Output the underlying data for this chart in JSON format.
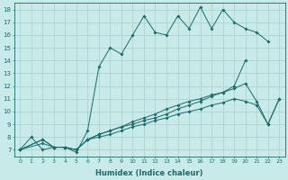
{
  "xlabel": "Humidex (Indice chaleur)",
  "bg_color": "#c8eae8",
  "grid_color": "#a8d0cc",
  "line_color": "#1a6b6b",
  "xlim": [
    -0.5,
    23.5
  ],
  "ylim": [
    6.5,
    18.5
  ],
  "xticks": [
    0,
    1,
    2,
    3,
    4,
    5,
    6,
    7,
    8,
    9,
    10,
    11,
    12,
    13,
    14,
    15,
    16,
    17,
    18,
    19,
    20,
    21,
    22,
    23
  ],
  "yticks": [
    7,
    8,
    9,
    10,
    11,
    12,
    13,
    14,
    15,
    16,
    17,
    18
  ],
  "series": [
    {
      "x": [
        0,
        1,
        2,
        3,
        4,
        5,
        6,
        7,
        8,
        9,
        10,
        11,
        12,
        13,
        14,
        15,
        16,
        17,
        18,
        19,
        20,
        21,
        22
      ],
      "y": [
        7,
        8,
        7,
        7.2,
        7.2,
        6.8,
        8.5,
        13.5,
        15.0,
        14.5,
        16.0,
        17.5,
        16.2,
        16.0,
        17.5,
        16.5,
        18.2,
        16.5,
        18.0,
        17.0,
        16.5,
        16.2,
        15.5
      ]
    },
    {
      "x": [
        0,
        2,
        3,
        4,
        5,
        6,
        7,
        8,
        9,
        10,
        11,
        12,
        13,
        14,
        15,
        16,
        17,
        18,
        19,
        20
      ],
      "y": [
        7,
        7.8,
        7.2,
        7.2,
        7.0,
        7.8,
        8.2,
        8.5,
        8.8,
        9.0,
        9.3,
        9.5,
        9.8,
        10.2,
        10.5,
        10.8,
        11.2,
        11.5,
        12.0,
        14.0
      ]
    },
    {
      "x": [
        0,
        2,
        3,
        4,
        5,
        6,
        7,
        8,
        9,
        10,
        11,
        12,
        13,
        14,
        15,
        16,
        17,
        18,
        19,
        20,
        21,
        22,
        23
      ],
      "y": [
        7,
        7.8,
        7.2,
        7.2,
        7.0,
        7.8,
        8.2,
        8.5,
        8.8,
        9.2,
        9.5,
        9.8,
        10.2,
        10.5,
        10.8,
        11.0,
        11.3,
        11.5,
        11.8,
        12.2,
        10.8,
        9.0,
        11.0
      ]
    },
    {
      "x": [
        0,
        2,
        3,
        4,
        5,
        6,
        7,
        8,
        9,
        10,
        11,
        12,
        13,
        14,
        15,
        16,
        17,
        18,
        19,
        20,
        21,
        22,
        23
      ],
      "y": [
        7,
        7.5,
        7.2,
        7.2,
        7.0,
        7.8,
        8.0,
        8.2,
        8.5,
        8.8,
        9.0,
        9.3,
        9.5,
        9.8,
        10.0,
        10.2,
        10.5,
        10.7,
        11.0,
        10.8,
        10.5,
        9.0,
        11.0
      ]
    }
  ]
}
